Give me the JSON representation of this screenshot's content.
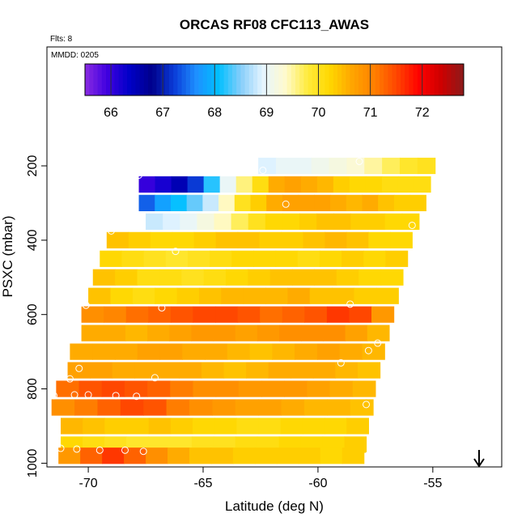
{
  "chart_data": {
    "type": "heatmap",
    "title": "ORCAS RF08 CFC113_AWAS",
    "flts_label": "Flts: 8",
    "mmdd_label": "MMDD: 0205",
    "xlabel": "Latitude (deg N)",
    "ylabel": "PSXC (mbar)",
    "xlim": [
      -71.8,
      -52
    ],
    "ylim": [
      1010,
      -120
    ],
    "x_ticks": [
      -70,
      -65,
      -60,
      -55
    ],
    "x_tick_labels": [
      "-70",
      "-65",
      "-60",
      "-55"
    ],
    "y_ticks": [
      200,
      400,
      600,
      800,
      1000
    ],
    "y_tick_labels": [
      "200",
      "400",
      "600",
      "800",
      "1000"
    ],
    "colorbar": {
      "range": [
        65.5,
        72.8
      ],
      "ticks": [
        66,
        67,
        68,
        69,
        70,
        71,
        72
      ],
      "tick_labels": [
        "66",
        "67",
        "68",
        "69",
        "70",
        "71",
        "72"
      ],
      "colors": [
        "#8a2be2",
        "#3f00e0",
        "#0000c8",
        "#00008b",
        "#0a3cd8",
        "#1e90ff",
        "#00bfff",
        "#87cefa",
        "#e6f5ff",
        "#fffacd",
        "#ffeb3b",
        "#ffd700",
        "#ffa500",
        "#ff7f00",
        "#ff4500",
        "#ff0000",
        "#cd0000",
        "#8b1a1a"
      ]
    },
    "bands": [
      {
        "p": 200,
        "lat_min": -62.6,
        "lat_max": -54.9,
        "values": [
          68.9,
          69.0,
          69.0,
          69.1,
          69.2,
          69.3,
          69.5,
          69.7,
          69.9,
          70.0
        ]
      },
      {
        "p": 250,
        "lat_min": -67.8,
        "lat_max": -55.1,
        "values": [
          66.0,
          66.2,
          66.5,
          67.2,
          68.2,
          69.0,
          69.6,
          70.1,
          70.6,
          70.7,
          70.6,
          70.5,
          70.3,
          70.2,
          70.2,
          70.1,
          70.1,
          70.1
        ]
      },
      {
        "p": 300,
        "lat_min": -67.8,
        "lat_max": -55.3,
        "values": [
          67.4,
          67.8,
          68.1,
          68.4,
          68.8,
          69.4,
          70.0,
          70.3,
          70.6,
          70.7,
          70.7,
          70.7,
          70.6,
          70.5,
          70.6,
          70.4,
          70.3,
          70.3
        ]
      },
      {
        "p": 350,
        "lat_min": -67.5,
        "lat_max": -55.6,
        "values": [
          68.8,
          68.9,
          69.0,
          69.2,
          69.4,
          69.7,
          70.0,
          70.2,
          70.2,
          70.3,
          70.4,
          70.4,
          70.3,
          70.3,
          70.2,
          70.2
        ]
      },
      {
        "p": 400,
        "lat_min": -69.2,
        "lat_max": -55.9,
        "values": [
          70.4,
          70.3,
          70.2,
          70.2,
          70.3,
          70.4,
          70.4,
          70.3,
          70.3,
          70.4,
          70.5,
          70.4,
          70.2,
          70.2
        ]
      },
      {
        "p": 450,
        "lat_min": -69.5,
        "lat_max": -56.1,
        "values": [
          70.2,
          70.1,
          70.0,
          69.9,
          70.0,
          70.1,
          70.2,
          70.2,
          70.2,
          70.1,
          70.2,
          70.3,
          70.2,
          70.3
        ]
      },
      {
        "p": 500,
        "lat_min": -69.8,
        "lat_max": -56.3,
        "values": [
          70.4,
          70.3,
          70.1,
          70.1,
          70.0,
          70.1,
          70.2,
          70.3,
          70.4,
          70.4,
          70.4,
          70.3,
          70.2,
          70.2
        ]
      },
      {
        "p": 550,
        "lat_min": -70.0,
        "lat_max": -56.5,
        "values": [
          70.4,
          70.2,
          70.1,
          70.2,
          70.3,
          70.4,
          70.5,
          70.5,
          70.5,
          70.6,
          70.4,
          70.4,
          70.3,
          70.3
        ]
      },
      {
        "p": 600,
        "lat_min": -70.3,
        "lat_max": -56.7,
        "values": [
          70.9,
          71.0,
          71.2,
          71.3,
          71.4,
          71.5,
          71.5,
          71.4,
          71.2,
          71.3,
          71.4,
          71.6,
          71.5,
          70.8
        ]
      },
      {
        "p": 650,
        "lat_min": -70.3,
        "lat_max": -56.9,
        "values": [
          70.6,
          70.6,
          70.5,
          70.6,
          70.7,
          70.8,
          70.8,
          70.7,
          70.8,
          70.9,
          70.9,
          70.9,
          70.7,
          70.5
        ]
      },
      {
        "p": 700,
        "lat_min": -70.8,
        "lat_max": -57.1,
        "values": [
          70.6,
          70.6,
          70.6,
          70.7,
          70.7,
          70.6,
          70.6,
          70.5,
          70.4,
          70.5,
          70.6,
          70.7,
          70.6,
          70.5
        ]
      },
      {
        "p": 750,
        "lat_min": -70.9,
        "lat_max": -57.3,
        "values": [
          70.7,
          70.7,
          70.6,
          70.6,
          70.6,
          70.6,
          70.5,
          70.4,
          70.5,
          70.6,
          70.6,
          70.6,
          70.5,
          70.4
        ]
      },
      {
        "p": 800,
        "lat_min": -71.4,
        "lat_max": -57.5,
        "values": [
          71.2,
          71.4,
          71.5,
          71.4,
          71.3,
          71.1,
          70.9,
          70.9,
          70.8,
          70.8,
          70.8,
          70.7,
          70.6,
          70.5
        ]
      },
      {
        "p": 850,
        "lat_min": -71.6,
        "lat_max": -57.6,
        "values": [
          70.9,
          71.1,
          71.3,
          71.5,
          71.4,
          71.1,
          70.9,
          70.8,
          70.7,
          70.7,
          70.6,
          70.5,
          70.5,
          70.4
        ]
      },
      {
        "p": 900,
        "lat_min": -71.2,
        "lat_max": -57.8,
        "values": [
          70.5,
          70.4,
          70.3,
          70.3,
          70.4,
          70.3,
          70.2,
          70.2,
          70.1,
          70.1,
          70.2,
          70.2,
          70.2,
          70.3
        ]
      },
      {
        "p": 950,
        "lat_min": -71.2,
        "lat_max": -57.9,
        "values": [
          70.2,
          70.1,
          70.0,
          69.9,
          69.9,
          69.9,
          70.0,
          70.0,
          70.1,
          70.1,
          70.2,
          70.2,
          70.2,
          70.3
        ]
      },
      {
        "p": 980,
        "lat_min": -71.3,
        "lat_max": -58.0,
        "values": [
          70.8,
          71.3,
          71.6,
          71.3,
          70.9,
          70.6,
          70.4,
          70.4,
          70.3,
          70.3,
          70.3,
          70.3,
          70.2,
          70.3
        ]
      }
    ],
    "sample_points": [
      {
        "lat": -58.2,
        "p": 188
      },
      {
        "lat": -62.4,
        "p": 212
      },
      {
        "lat": -67.8,
        "p": 225
      },
      {
        "lat": -68.0,
        "p": 255
      },
      {
        "lat": -68.2,
        "p": 300
      },
      {
        "lat": -61.4,
        "p": 303
      },
      {
        "lat": -55.9,
        "p": 360
      },
      {
        "lat": -69.0,
        "p": 375
      },
      {
        "lat": -66.2,
        "p": 430
      },
      {
        "lat": -55.4,
        "p": 550
      },
      {
        "lat": -70.4,
        "p": 572
      },
      {
        "lat": -70.1,
        "p": 575
      },
      {
        "lat": -66.8,
        "p": 582
      },
      {
        "lat": -58.6,
        "p": 572
      },
      {
        "lat": -57.4,
        "p": 677
      },
      {
        "lat": -57.8,
        "p": 697
      },
      {
        "lat": -59.0,
        "p": 730
      },
      {
        "lat": -70.4,
        "p": 745
      },
      {
        "lat": -70.8,
        "p": 773
      },
      {
        "lat": -67.1,
        "p": 770
      },
      {
        "lat": -71.5,
        "p": 818
      },
      {
        "lat": -70.6,
        "p": 816
      },
      {
        "lat": -70.0,
        "p": 816
      },
      {
        "lat": -68.8,
        "p": 818
      },
      {
        "lat": -67.9,
        "p": 820
      },
      {
        "lat": -57.1,
        "p": 820
      },
      {
        "lat": -57.9,
        "p": 842
      },
      {
        "lat": -71.2,
        "p": 960
      },
      {
        "lat": -70.5,
        "p": 962
      },
      {
        "lat": -69.5,
        "p": 965
      },
      {
        "lat": -68.4,
        "p": 965
      },
      {
        "lat": -67.6,
        "p": 968
      },
      {
        "lat": -57.8,
        "p": 978
      }
    ]
  }
}
